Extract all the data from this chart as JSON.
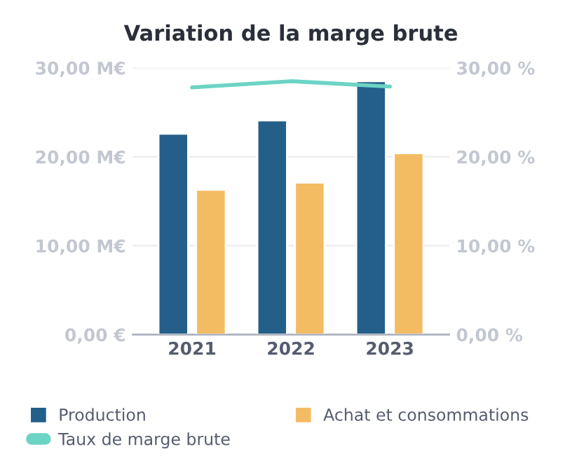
{
  "chart_data": {
    "type": "bar",
    "title": "Variation de la marge brute",
    "categories": [
      "2021",
      "2022",
      "2023"
    ],
    "series": [
      {
        "name": "Production",
        "color": "#245f8a",
        "values": [
          22.6,
          24.1,
          28.5
        ]
      },
      {
        "name": "Achat et consommations",
        "color": "#f3bc63",
        "values": [
          16.3,
          17.1,
          20.4
        ]
      },
      {
        "name": "Taux de marge brute",
        "type": "line",
        "axis": "y2",
        "color": "#6cd4c4",
        "values": [
          27.8,
          28.5,
          27.9
        ]
      }
    ],
    "ylim": [
      0,
      30
    ],
    "yticks": [
      {
        "value": 0,
        "label": "0,00 €"
      },
      {
        "value": 10,
        "label": "10,00 M€"
      },
      {
        "value": 20,
        "label": "20,00 M€"
      },
      {
        "value": 30,
        "label": "30,00 M€"
      }
    ],
    "y2lim": [
      0,
      30
    ],
    "y2ticks": [
      {
        "value": 0,
        "label": "0,00 %"
      },
      {
        "value": 10,
        "label": "10,00 %"
      },
      {
        "value": 20,
        "label": "20,00 %"
      },
      {
        "value": 30,
        "label": "30,00 %"
      }
    ],
    "grid": "y",
    "legend": "bottom"
  }
}
